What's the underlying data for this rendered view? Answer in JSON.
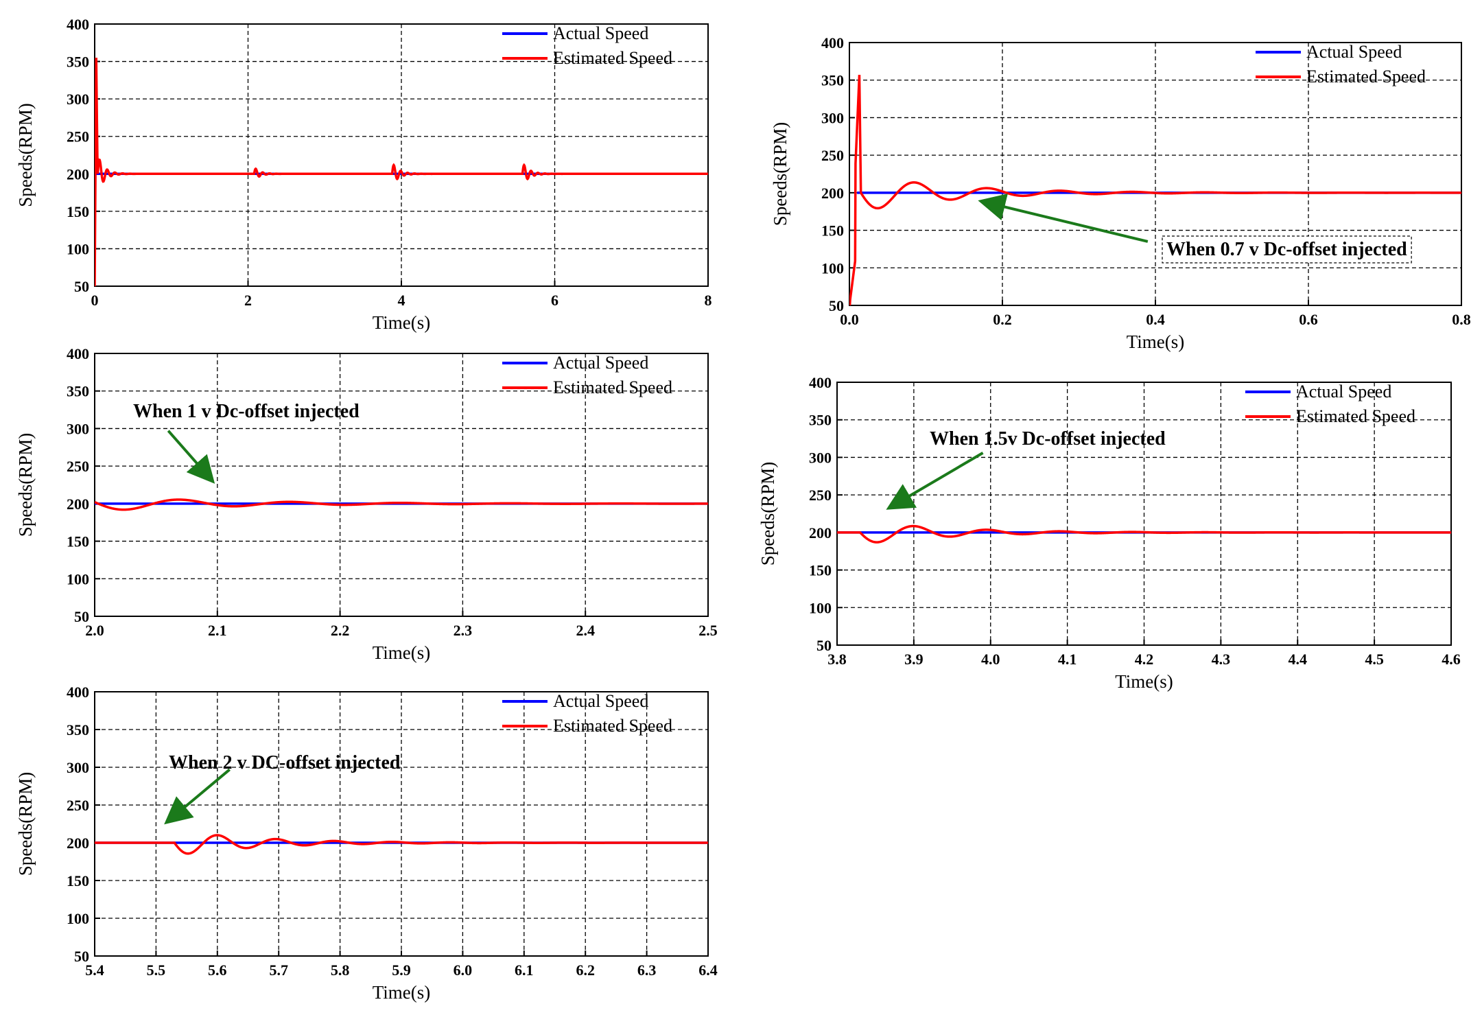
{
  "colors": {
    "actual": "#0000ff",
    "estimated": "#ff0000",
    "arrow": "#1b7a1b",
    "grid": "#000000"
  },
  "chart_data": [
    {
      "id": "full",
      "type": "line",
      "title": "",
      "xlabel": "Time(s)",
      "ylabel": "Speeds(RPM)",
      "xlim": [
        0,
        8
      ],
      "ylim": [
        50,
        400
      ],
      "xticks": [
        0,
        2,
        4,
        6,
        8
      ],
      "xtick_labels": [
        "0",
        "2",
        "4",
        "6",
        "8"
      ],
      "yticks": [
        50,
        100,
        150,
        200,
        250,
        300,
        350,
        400
      ],
      "ytick_labels": [
        "50",
        "100",
        "150",
        "200",
        "250",
        "300",
        "350",
        "400"
      ],
      "legend_position": "top-right",
      "series": [
        {
          "name": "Actual Speed",
          "key": "actual",
          "kind": "step",
          "steady": 200,
          "start": 0
        },
        {
          "name": "Estimated Speed",
          "key": "estimated",
          "kind": "full",
          "initial": {
            "peak": 355,
            "t0": 0,
            "tpeak": 0.02,
            "amp": 25,
            "decay": 12,
            "period": 0.1
          },
          "disturbances": [
            {
              "t": 2.08,
              "amp": 9,
              "period": 0.09,
              "decay": 14
            },
            {
              "t": 3.88,
              "amp": 15,
              "period": 0.09,
              "decay": 12
            },
            {
              "t": 5.58,
              "amp": 15,
              "period": 0.09,
              "decay": 12
            }
          ]
        }
      ],
      "annotation": null
    },
    {
      "id": "startup",
      "type": "line",
      "title": "",
      "xlabel": "Time(s)",
      "ylabel": "Speeds(RPM)",
      "xlim": [
        0,
        0.8
      ],
      "ylim": [
        50,
        400
      ],
      "xticks": [
        0,
        0.2,
        0.4,
        0.6,
        0.8
      ],
      "xtick_labels": [
        "0.0",
        "0.2",
        "0.4",
        "0.6",
        "0.8"
      ],
      "yticks": [
        50,
        100,
        150,
        200,
        250,
        300,
        350,
        400
      ],
      "ytick_labels": [
        "50",
        "100",
        "150",
        "200",
        "250",
        "300",
        "350",
        "400"
      ],
      "legend_position": "top-right",
      "series": [
        {
          "name": "Actual Speed",
          "key": "actual",
          "kind": "step",
          "steady": 200,
          "start": 0.01
        },
        {
          "name": "Estimated Speed",
          "key": "estimated",
          "kind": "startup",
          "spike": {
            "t": 0.013,
            "value": 357
          },
          "ringing": {
            "start": 0.015,
            "amp": 25,
            "period": 0.095,
            "decay": 8.5
          }
        }
      ],
      "annotation": {
        "text": "When 0.7 v Dc-offset injected",
        "arrow_from": [
          0.39,
          135
        ],
        "arrow_to": [
          0.175,
          188
        ]
      }
    },
    {
      "id": "offset1",
      "type": "line",
      "title": "",
      "xlabel": "Time(s)",
      "ylabel": "Speeds(RPM)",
      "xlim": [
        2.0,
        2.5
      ],
      "ylim": [
        50,
        400
      ],
      "xticks": [
        2.0,
        2.1,
        2.2,
        2.3,
        2.4,
        2.5
      ],
      "xtick_labels": [
        "2.0",
        "2.1",
        "2.2",
        "2.3",
        "2.4",
        "2.5"
      ],
      "yticks": [
        50,
        100,
        150,
        200,
        250,
        300,
        350,
        400
      ],
      "ytick_labels": [
        "50",
        "100",
        "150",
        "200",
        "250",
        "300",
        "350",
        "400"
      ],
      "legend_position": "top-right",
      "series": [
        {
          "name": "Actual Speed",
          "key": "actual",
          "kind": "step",
          "steady": 200,
          "start": 2.0
        },
        {
          "name": "Estimated Speed",
          "key": "estimated",
          "kind": "ringing",
          "ringing": {
            "start": 2.0,
            "amp": 10,
            "period": 0.09,
            "decay": 9,
            "phase": -0.2
          }
        }
      ],
      "annotation": {
        "text": "When 1 v Dc-offset injected",
        "arrow_from": [
          2.06,
          297
        ],
        "arrow_to": [
          2.095,
          232
        ]
      }
    },
    {
      "id": "offset15",
      "type": "line",
      "title": "",
      "xlabel": "Time(s)",
      "ylabel": "Speeds(RPM)",
      "xlim": [
        3.8,
        4.6
      ],
      "ylim": [
        50,
        400
      ],
      "xticks": [
        3.8,
        3.9,
        4.0,
        4.1,
        4.2,
        4.3,
        4.4,
        4.5,
        4.6
      ],
      "xtick_labels": [
        "3.8",
        "3.9",
        "4.0",
        "4.1",
        "4.2",
        "4.3",
        "4.4",
        "4.5",
        "4.6"
      ],
      "yticks": [
        50,
        100,
        150,
        200,
        250,
        300,
        350,
        400
      ],
      "ytick_labels": [
        "50",
        "100",
        "150",
        "200",
        "250",
        "300",
        "350",
        "400"
      ],
      "legend_position": "top-right",
      "series": [
        {
          "name": "Actual Speed",
          "key": "actual",
          "kind": "step",
          "steady": 200,
          "start": 3.8
        },
        {
          "name": "Estimated Speed",
          "key": "estimated",
          "kind": "ringing",
          "ringing": {
            "start": 3.83,
            "amp": 16,
            "period": 0.095,
            "decay": 9,
            "phase": 0
          }
        }
      ],
      "annotation": {
        "text": "When 1.5v Dc-offset injected",
        "arrow_from": [
          3.99,
          306
        ],
        "arrow_to": [
          3.87,
          234
        ]
      }
    },
    {
      "id": "offset2",
      "type": "line",
      "title": "",
      "xlabel": "Time(s)",
      "ylabel": "Speeds(RPM)",
      "xlim": [
        5.4,
        6.4
      ],
      "ylim": [
        50,
        400
      ],
      "xticks": [
        5.4,
        5.5,
        5.6,
        5.7,
        5.8,
        5.9,
        6.0,
        6.1,
        6.2,
        6.3,
        6.4
      ],
      "xtick_labels": [
        "5.4",
        "5.5",
        "5.6",
        "5.7",
        "5.8",
        "5.9",
        "6.0",
        "6.1",
        "6.2",
        "6.3",
        "6.4"
      ],
      "yticks": [
        50,
        100,
        150,
        200,
        250,
        300,
        350,
        400
      ],
      "ytick_labels": [
        "50",
        "100",
        "150",
        "200",
        "250",
        "300",
        "350",
        "400"
      ],
      "legend_position": "top-right",
      "series": [
        {
          "name": "Actual Speed",
          "key": "actual",
          "kind": "step",
          "steady": 200,
          "start": 5.4
        },
        {
          "name": "Estimated Speed",
          "key": "estimated",
          "kind": "ringing",
          "ringing": {
            "start": 5.53,
            "amp": 17,
            "period": 0.095,
            "decay": 7.5,
            "phase": 0
          }
        }
      ],
      "annotation": {
        "text": "When 2 v DC-offset injected",
        "arrow_from": [
          5.62,
          297
        ],
        "arrow_to": [
          5.52,
          229
        ]
      }
    }
  ]
}
